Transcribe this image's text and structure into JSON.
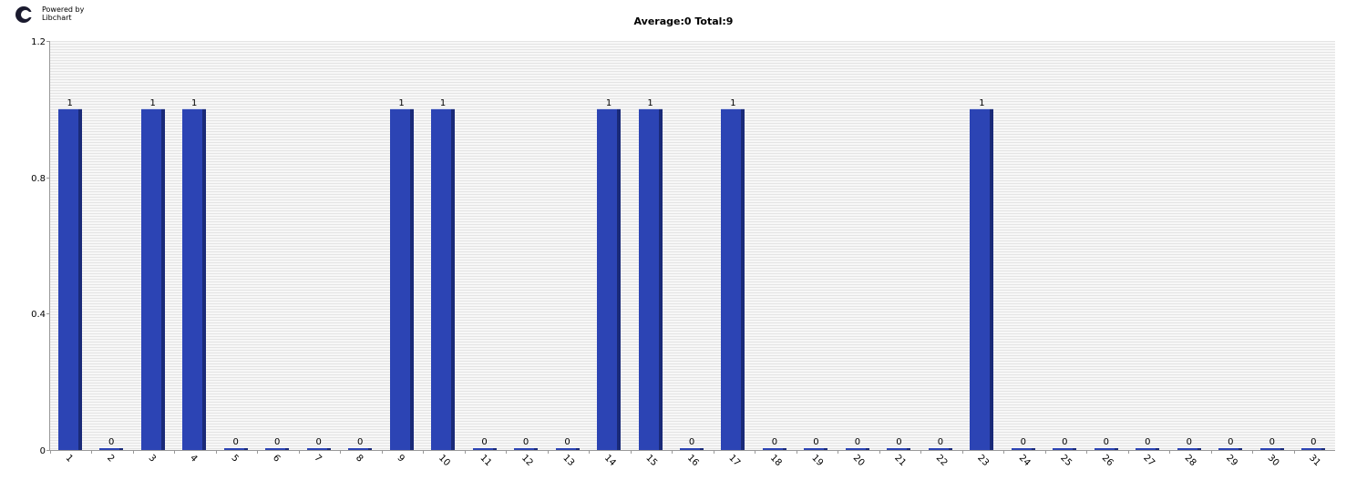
{
  "logo": {
    "line1": "Powered by",
    "line2": "Libchart"
  },
  "chart_data": {
    "type": "bar",
    "title": "Average:0  Total:9",
    "xlabel": "",
    "ylabel": "",
    "ylim": [
      0,
      1.2
    ],
    "yticks": [
      "0",
      "0.4",
      "0.8",
      "1.2"
    ],
    "ytick_values": [
      0,
      0.4,
      0.8,
      1.2
    ],
    "grid": true,
    "categories": [
      "1",
      "2",
      "3",
      "4",
      "5",
      "6",
      "7",
      "8",
      "9",
      "10",
      "11",
      "12",
      "13",
      "14",
      "15",
      "16",
      "17",
      "18",
      "19",
      "20",
      "21",
      "22",
      "23",
      "24",
      "25",
      "26",
      "27",
      "28",
      "29",
      "30",
      "31"
    ],
    "values": [
      1,
      0,
      1,
      1,
      0,
      0,
      0,
      0,
      1,
      1,
      0,
      0,
      0,
      1,
      1,
      0,
      1,
      0,
      0,
      0,
      0,
      0,
      1,
      0,
      0,
      0,
      0,
      0,
      0,
      0,
      0
    ],
    "data_labels": [
      "1",
      "0",
      "1",
      "1",
      "0",
      "0",
      "0",
      "0",
      "1",
      "1",
      "0",
      "0",
      "0",
      "1",
      "1",
      "0",
      "1",
      "0",
      "0",
      "0",
      "0",
      "0",
      "1",
      "0",
      "0",
      "0",
      "0",
      "0",
      "0",
      "0",
      "0"
    ],
    "colors": {
      "bar": "#2c44b4",
      "bar_shade": "#1a2a78",
      "grid": "#e4e4e4",
      "axis": "#999999"
    }
  }
}
